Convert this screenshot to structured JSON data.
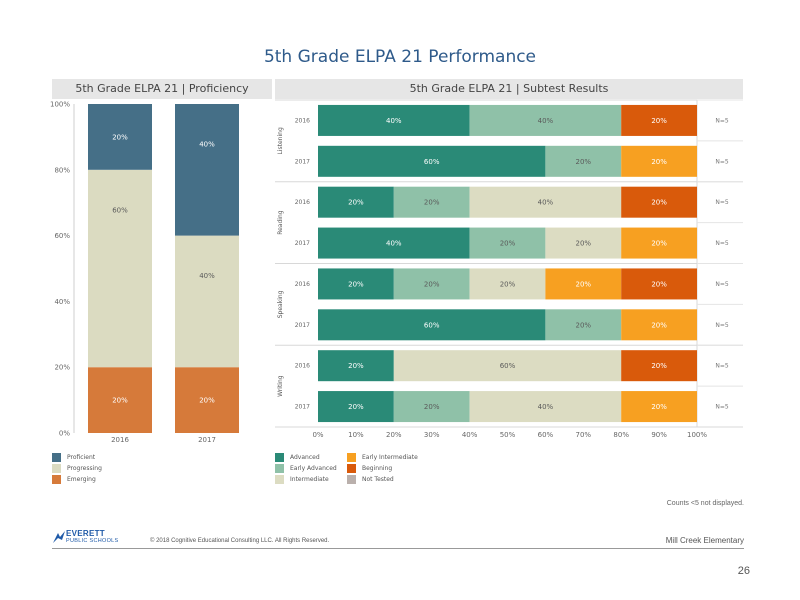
{
  "title": "5th Grade ELPA 21 Performance",
  "note": "Counts <5 not displayed.",
  "school": "Mill Creek Elementary",
  "page_number": "26",
  "copyright": "© 2018 Cognitive Educational Consulting LLC. All Rights Reserved.",
  "logo": {
    "line1": "EVERETT",
    "line2": "PUBLIC SCHOOLS"
  },
  "colors": {
    "proficient": "#456f87",
    "progressing": "#dbdbc1",
    "emerging": "#d67a3a",
    "advanced": "#2a8a77",
    "early_advanced": "#8fc1a8",
    "intermediate": "#dcdcc2",
    "early_intermediate": "#f7a021",
    "beginning": "#d95a0b",
    "not_tested": "#bab0ac"
  },
  "chart_data": [
    {
      "type": "bar",
      "stacked": true,
      "title": "5th Grade ELPA 21 | Proficiency",
      "categories": [
        "2016",
        "2017"
      ],
      "ylim": [
        0,
        100
      ],
      "yticks": [
        "0%",
        "20%",
        "40%",
        "60%",
        "80%",
        "100%"
      ],
      "series": [
        {
          "name": "Emerging",
          "color": "#d67a3a",
          "values": [
            20,
            20
          ],
          "labels": [
            "20%",
            "20%"
          ]
        },
        {
          "name": "Progressing",
          "color": "#dbdbc1",
          "values": [
            60,
            40
          ],
          "labels": [
            "60%",
            "40%"
          ]
        },
        {
          "name": "Proficient",
          "color": "#456f87",
          "values": [
            20,
            40
          ],
          "labels": [
            "20%",
            "40%"
          ]
        }
      ],
      "legend": [
        "Proficient",
        "Progressing",
        "Emerging"
      ]
    },
    {
      "type": "bar",
      "orientation": "horizontal",
      "stacked": true,
      "title": "5th Grade ELPA 21 | Subtest Results",
      "xlim": [
        0,
        100
      ],
      "xticks": [
        "0%",
        "10%",
        "20%",
        "30%",
        "40%",
        "50%",
        "60%",
        "70%",
        "80%",
        "90%",
        "100%"
      ],
      "groups": [
        {
          "name": "Listening",
          "rows": [
            {
              "year": "2016",
              "n": "N=5",
              "segments": [
                {
                  "level": "Advanced",
                  "value": 40,
                  "label": "40%"
                },
                {
                  "level": "Early Advanced",
                  "value": 40,
                  "label": "40%"
                },
                {
                  "level": "Beginning",
                  "value": 20,
                  "label": "20%"
                }
              ]
            },
            {
              "year": "2017",
              "n": "N=5",
              "segments": [
                {
                  "level": "Advanced",
                  "value": 60,
                  "label": "60%"
                },
                {
                  "level": "Early Advanced",
                  "value": 20,
                  "label": "20%"
                },
                {
                  "level": "Early Intermediate",
                  "value": 20,
                  "label": "20%"
                }
              ]
            }
          ]
        },
        {
          "name": "Reading",
          "rows": [
            {
              "year": "2016",
              "n": "N=5",
              "segments": [
                {
                  "level": "Advanced",
                  "value": 20,
                  "label": "20%"
                },
                {
                  "level": "Early Advanced",
                  "value": 20,
                  "label": "20%"
                },
                {
                  "level": "Intermediate",
                  "value": 40,
                  "label": "40%"
                },
                {
                  "level": "Beginning",
                  "value": 20,
                  "label": "20%"
                }
              ]
            },
            {
              "year": "2017",
              "n": "N=5",
              "segments": [
                {
                  "level": "Advanced",
                  "value": 40,
                  "label": "40%"
                },
                {
                  "level": "Early Advanced",
                  "value": 20,
                  "label": "20%"
                },
                {
                  "level": "Intermediate",
                  "value": 20,
                  "label": "20%"
                },
                {
                  "level": "Early Intermediate",
                  "value": 20,
                  "label": "20%"
                }
              ]
            }
          ]
        },
        {
          "name": "Speaking",
          "rows": [
            {
              "year": "2016",
              "n": "N=5",
              "segments": [
                {
                  "level": "Advanced",
                  "value": 20,
                  "label": "20%"
                },
                {
                  "level": "Early Advanced",
                  "value": 20,
                  "label": "20%"
                },
                {
                  "level": "Intermediate",
                  "value": 20,
                  "label": "20%"
                },
                {
                  "level": "Early Intermediate",
                  "value": 20,
                  "label": "20%"
                },
                {
                  "level": "Beginning",
                  "value": 20,
                  "label": "20%"
                }
              ]
            },
            {
              "year": "2017",
              "n": "N=5",
              "segments": [
                {
                  "level": "Advanced",
                  "value": 60,
                  "label": "60%"
                },
                {
                  "level": "Early Advanced",
                  "value": 20,
                  "label": "20%"
                },
                {
                  "level": "Early Intermediate",
                  "value": 20,
                  "label": "20%"
                }
              ]
            }
          ]
        },
        {
          "name": "Writing",
          "rows": [
            {
              "year": "2016",
              "n": "N=5",
              "segments": [
                {
                  "level": "Advanced",
                  "value": 20,
                  "label": "20%"
                },
                {
                  "level": "Intermediate",
                  "value": 60,
                  "label": "60%"
                },
                {
                  "level": "Beginning",
                  "value": 20,
                  "label": "20%"
                }
              ]
            },
            {
              "year": "2017",
              "n": "N=5",
              "segments": [
                {
                  "level": "Advanced",
                  "value": 20,
                  "label": "20%"
                },
                {
                  "level": "Early Advanced",
                  "value": 20,
                  "label": "20%"
                },
                {
                  "level": "Intermediate",
                  "value": 40,
                  "label": "40%"
                },
                {
                  "level": "Early Intermediate",
                  "value": 20,
                  "label": "20%"
                }
              ]
            }
          ]
        }
      ],
      "legend": [
        "Advanced",
        "Early Advanced",
        "Intermediate",
        "Early Intermediate",
        "Beginning",
        "Not Tested"
      ]
    }
  ]
}
